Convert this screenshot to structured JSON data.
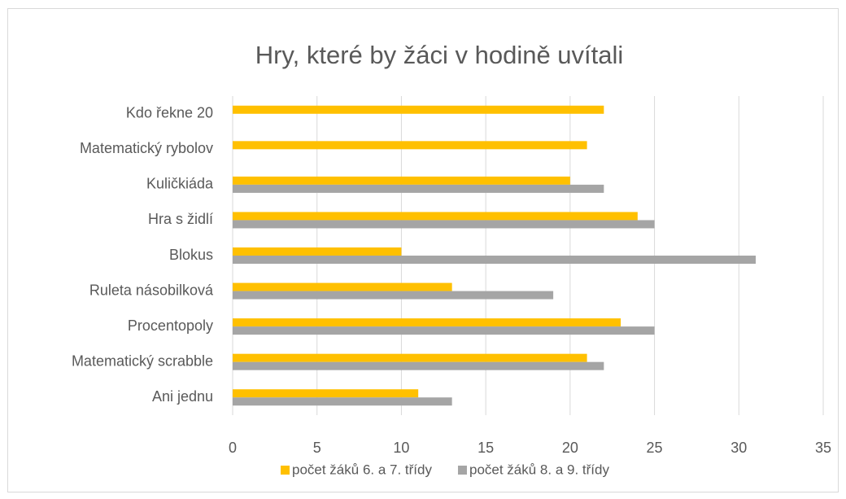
{
  "chart_data": {
    "type": "hbar",
    "title": "Hry, které by žáci v hodině uvítali",
    "categories": [
      "Kdo řekne 20",
      "Matematický rybolov",
      "Kuličkiáda",
      "Hra s židlí",
      "Blokus",
      "Ruleta násobilková",
      "Procentopoly",
      "Matematický scrabble",
      "Ani jednu"
    ],
    "series": [
      {
        "name": "počet žáků 6. a 7. třídy",
        "color": "#ffc000",
        "values": [
          22,
          21,
          20,
          24,
          10,
          13,
          23,
          21,
          11
        ]
      },
      {
        "name": "počet žáků 8. a 9. třídy",
        "color": "#a5a5a5",
        "values": [
          null,
          null,
          22,
          25,
          31,
          19,
          25,
          22,
          13
        ]
      }
    ],
    "xlim": [
      0,
      35
    ],
    "xticks": [
      0,
      5,
      10,
      15,
      20,
      25,
      30,
      35
    ],
    "grid": true,
    "legend": "bottom"
  }
}
